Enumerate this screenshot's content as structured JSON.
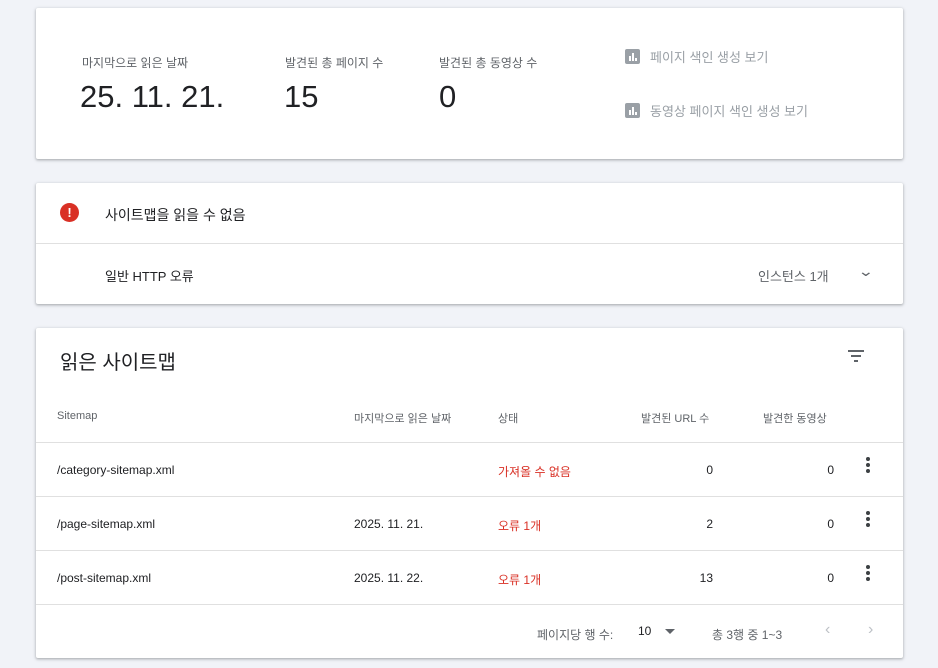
{
  "summary": {
    "last_read_label": "마지막으로 읽은 날짜",
    "last_read_value": "25. 11. 21.",
    "pages_label": "발견된 총 페이지 수",
    "pages_value": "15",
    "videos_label": "발견된 총 동영상 수",
    "videos_value": "0",
    "page_index_link": "페이지 색인 생성 보기",
    "video_index_link": "동영상 페이지 색인 생성 보기"
  },
  "error": {
    "title": "사이트맵을 읽을 수 없음",
    "item": "일반 HTTP 오류",
    "instances": "인스턴스 1개",
    "color": "#d93025"
  },
  "table": {
    "title": "읽은 사이트맵",
    "headers": [
      "Sitemap",
      "마지막으로 읽은 날짜",
      "상태",
      "발견된 URL 수",
      "발견한 동영상"
    ],
    "rows": [
      {
        "sitemap": "/category-sitemap.xml",
        "date": "",
        "status": "가져올 수 없음",
        "urls": "0",
        "videos": "0"
      },
      {
        "sitemap": "/page-sitemap.xml",
        "date": "2025. 11. 21.",
        "status": "오류 1개",
        "urls": "2",
        "videos": "0"
      },
      {
        "sitemap": "/post-sitemap.xml",
        "date": "2025. 11. 22.",
        "status": "오류 1개",
        "urls": "13",
        "videos": "0"
      }
    ],
    "rows_per_page_label": "페이지당 행 수:",
    "rows_per_page": "10",
    "range": "총 3행 중 1~3"
  }
}
